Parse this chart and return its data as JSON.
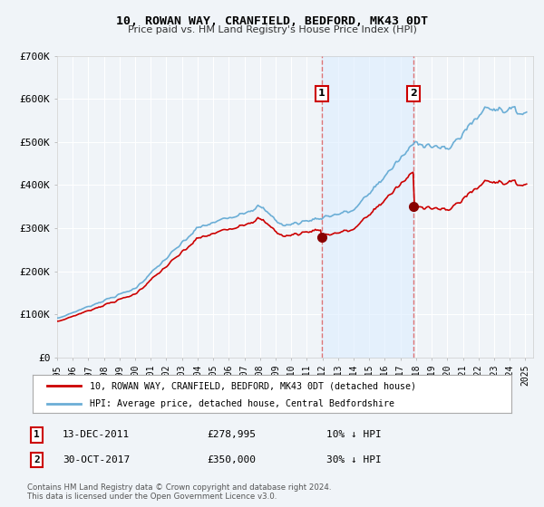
{
  "title": "10, ROWAN WAY, CRANFIELD, BEDFORD, MK43 0DT",
  "subtitle": "Price paid vs. HM Land Registry's House Price Index (HPI)",
  "legend_line1": "10, ROWAN WAY, CRANFIELD, BEDFORD, MK43 0DT (detached house)",
  "legend_line2": "HPI: Average price, detached house, Central Bedfordshire",
  "annotation1_label": "1",
  "annotation1_date": "13-DEC-2011",
  "annotation1_price": "£278,995",
  "annotation1_hpi": "10% ↓ HPI",
  "annotation2_label": "2",
  "annotation2_date": "30-OCT-2017",
  "annotation2_price": "£350,000",
  "annotation2_hpi": "30% ↓ HPI",
  "footer1": "Contains HM Land Registry data © Crown copyright and database right 2024.",
  "footer2": "This data is licensed under the Open Government Licence v3.0.",
  "hpi_color": "#6baed6",
  "hpi_fill_color": "#ddeeff",
  "price_color": "#cc0000",
  "marker_color": "#880000",
  "vline_color": "#dd6666",
  "background_color": "#f0f4f8",
  "chart_bg_color": "#f0f4f8",
  "grid_color": "#ffffff",
  "annotation_box_color": "#cc0000",
  "legend_bg": "#ffffff",
  "legend_border": "#aaaaaa",
  "ylim": [
    0,
    700000
  ],
  "yticks": [
    0,
    100000,
    200000,
    300000,
    400000,
    500000,
    600000,
    700000
  ],
  "ytick_labels": [
    "£0",
    "£100K",
    "£200K",
    "£300K",
    "£400K",
    "£500K",
    "£600K",
    "£700K"
  ],
  "xmin": 1995.0,
  "xmax": 2025.5,
  "sale1_x": 2011.95,
  "sale1_y": 278995,
  "sale2_x": 2017.83,
  "sale2_y": 350000,
  "marker_size": 7
}
